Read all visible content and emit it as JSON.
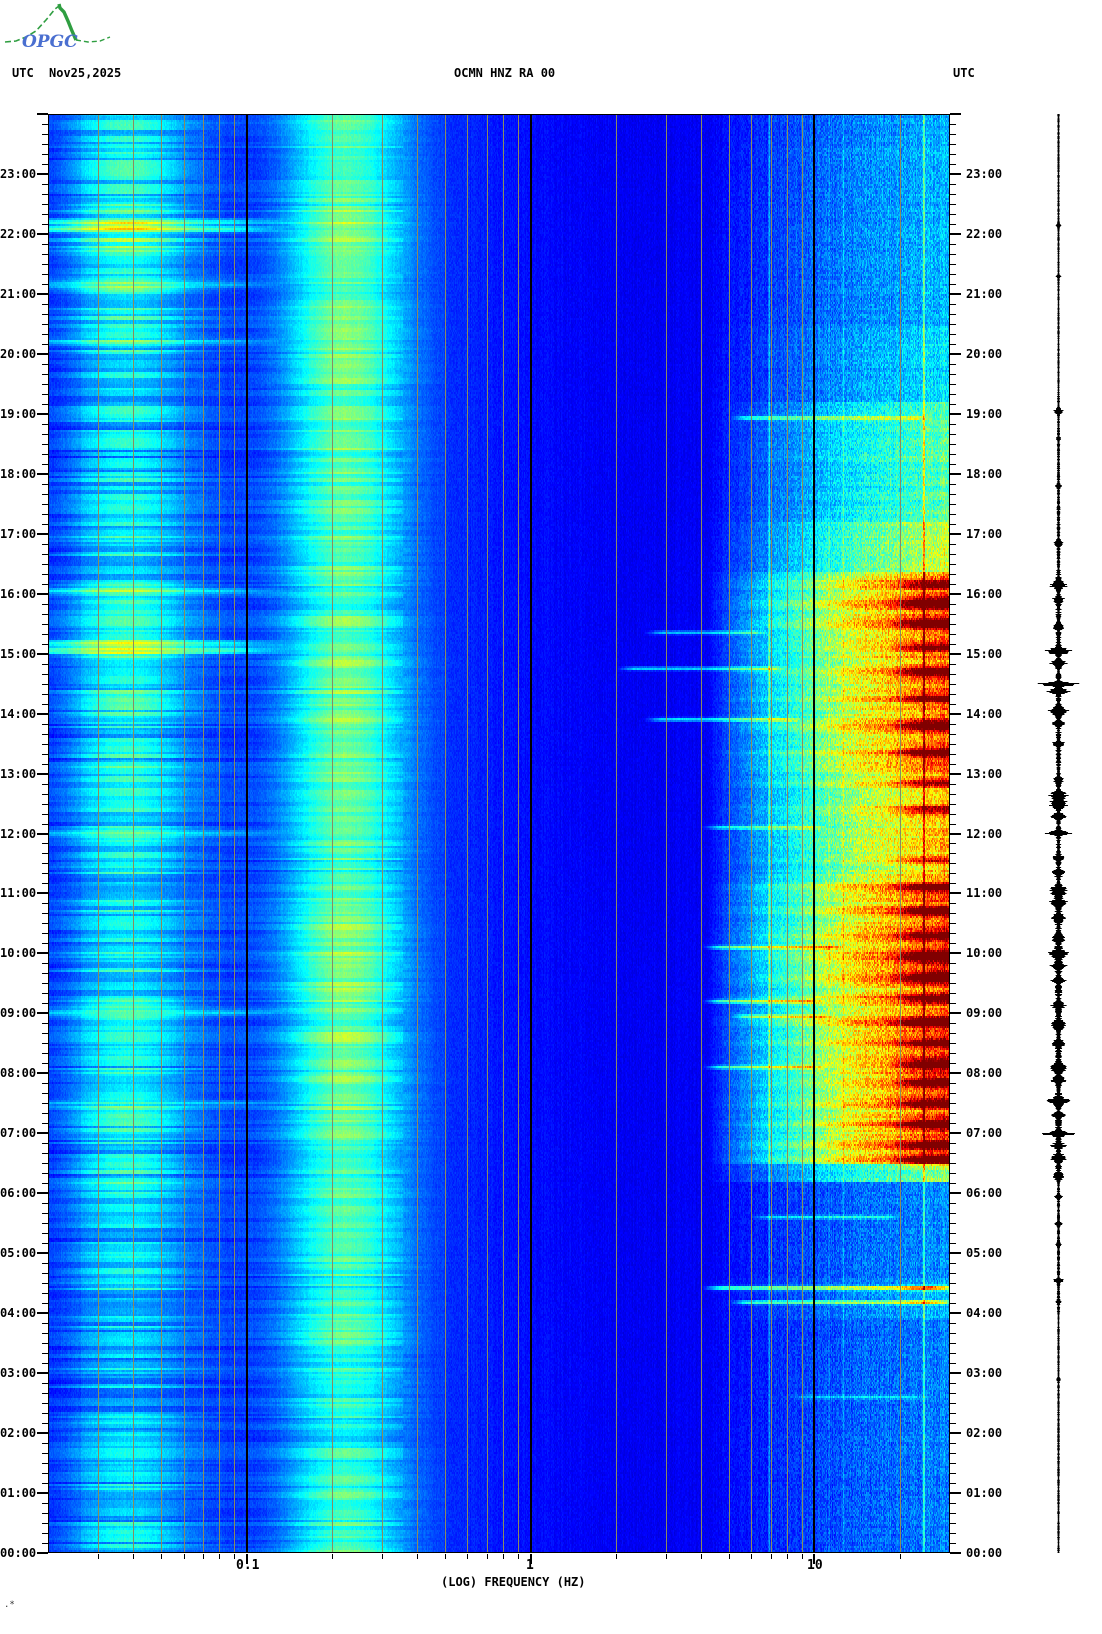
{
  "logo": {
    "text": "OPGC",
    "green": "#2f9e41",
    "blue": "#4a6fd0"
  },
  "header": {
    "left_utc": "UTC",
    "date": "Nov25,2025",
    "station_title": "OCMN HNZ RA 00",
    "right_utc": "UTC"
  },
  "footer": {
    "mark": ".*"
  },
  "chart_data": {
    "type": "heatmap",
    "subtype": "seismic-spectrogram-24h",
    "title": "OCMN HNZ RA 00",
    "station": "OCMN",
    "channel": "HNZ",
    "network": "RA",
    "location": "00",
    "date_utc": "Nov25,2025",
    "xlabel": "(LOG) FREQUENCY (HZ)",
    "x_scale": "log10",
    "freq_range_hz": [
      0.02,
      30
    ],
    "x_major_ticks": [
      {
        "hz": 0.1,
        "label": "0.1"
      },
      {
        "hz": 1,
        "label": "1"
      },
      {
        "hz": 10,
        "label": "10"
      }
    ],
    "x_minor_gridlines_hz": [
      0.03,
      0.04,
      0.05,
      0.06,
      0.07,
      0.08,
      0.09,
      0.2,
      0.3,
      0.4,
      0.5,
      0.6,
      0.7,
      0.8,
      0.9,
      2,
      3,
      4,
      5,
      6,
      7,
      8,
      9,
      20
    ],
    "time_axis": {
      "bottom": "00:00",
      "top": "24:00",
      "minor_tick_minutes": 10,
      "hour_labels": [
        "23:00",
        "22:00",
        "21:00",
        "20:00",
        "19:00",
        "18:00",
        "17:00",
        "16:00",
        "15:00",
        "14:00",
        "13:00",
        "12:00",
        "11:00",
        "10:00",
        "09:00",
        "08:00",
        "07:00",
        "06:00",
        "05:00",
        "04:00",
        "03:00",
        "02:00",
        "01:00",
        "00:00"
      ]
    },
    "colors": {
      "grid": "#8b8b5f",
      "axis": "#000000",
      "background": "#ffffff",
      "colormap": "jet",
      "trace": "#000000"
    },
    "base_spectrum": [
      [
        -1.7,
        0.155
      ],
      [
        -1.58,
        0.175
      ],
      [
        -1.42,
        0.18
      ],
      [
        -1.28,
        0.175
      ],
      [
        -1.1,
        0.165
      ],
      [
        -1.0,
        0.155
      ],
      [
        -0.92,
        0.15
      ],
      [
        -0.8,
        0.16
      ],
      [
        -0.66,
        0.165
      ],
      [
        -0.5,
        0.165
      ],
      [
        -0.35,
        0.16
      ],
      [
        -0.2,
        0.15
      ],
      [
        -0.05,
        0.14
      ],
      [
        0.1,
        0.125
      ],
      [
        0.3,
        0.115
      ],
      [
        0.6,
        0.112
      ],
      [
        0.8,
        0.12
      ],
      [
        1.0,
        0.128
      ],
      [
        1.3,
        0.13
      ],
      [
        1.48,
        0.13
      ]
    ],
    "band2_envelope": [
      [
        0,
        2,
        0.16
      ],
      [
        2,
        4,
        0.13
      ],
      [
        4,
        6,
        0.16
      ],
      [
        6,
        8,
        0.21
      ],
      [
        8,
        10,
        0.2
      ],
      [
        10,
        12,
        0.18
      ],
      [
        12,
        14,
        0.21
      ],
      [
        14,
        16,
        0.23
      ],
      [
        16,
        17.5,
        0.19
      ],
      [
        17.5,
        19,
        0.16
      ],
      [
        19,
        20.5,
        0.19
      ],
      [
        20.5,
        21.5,
        0.22
      ],
      [
        21.5,
        22.5,
        0.27
      ],
      [
        22.5,
        23.5,
        0.21
      ],
      [
        23.5,
        24,
        0.18
      ]
    ],
    "microseism_envelope": [
      [
        0,
        1.5,
        0.27
      ],
      [
        1.5,
        3.5,
        0.23
      ],
      [
        3.5,
        5,
        0.27
      ],
      [
        5,
        7,
        0.29
      ],
      [
        7,
        9,
        0.32
      ],
      [
        9,
        10.5,
        0.33
      ],
      [
        10.5,
        12,
        0.29
      ],
      [
        12,
        13,
        0.31
      ],
      [
        13,
        15,
        0.33
      ],
      [
        15,
        16.5,
        0.29
      ],
      [
        16.5,
        18,
        0.28
      ],
      [
        18,
        19.5,
        0.31
      ],
      [
        19.5,
        21,
        0.33
      ],
      [
        21,
        21.8,
        0.3
      ],
      [
        21.8,
        22.4,
        0.36
      ],
      [
        22.4,
        23.2,
        0.31
      ],
      [
        23.2,
        24,
        0.29
      ]
    ],
    "hf_envelope": [
      [
        0,
        3.9,
        0.09
      ],
      [
        3.9,
        4.6,
        0.13
      ],
      [
        4.6,
        6.2,
        0.1
      ],
      [
        6.2,
        6.5,
        0.28
      ],
      [
        6.5,
        11.2,
        0.5
      ],
      [
        11.2,
        13.0,
        0.42
      ],
      [
        13.0,
        16.35,
        0.48
      ],
      [
        16.35,
        17.2,
        0.32
      ],
      [
        17.2,
        19.2,
        0.25
      ],
      [
        19.2,
        20.5,
        0.16
      ],
      [
        20.5,
        24,
        0.13
      ]
    ],
    "spectral_lines_hz": [
      {
        "hz": 6.9,
        "s": 0.22
      },
      {
        "hz": 11.2,
        "s": 0.1
      },
      {
        "hz": 12.6,
        "s": 0.08
      },
      {
        "hz": 24.2,
        "s": 0.38
      },
      {
        "hz": 28.5,
        "s": 0.1
      }
    ],
    "red_bursts": [
      [
        6.55,
        0.06,
        1
      ],
      [
        6.8,
        0.05,
        0.9
      ],
      [
        7.15,
        0.06,
        1
      ],
      [
        7.5,
        0.05,
        0.9
      ],
      [
        7.85,
        0.06,
        1
      ],
      [
        8.15,
        0.07,
        1
      ],
      [
        8.5,
        0.05,
        0.8
      ],
      [
        8.85,
        0.06,
        1
      ],
      [
        9.25,
        0.05,
        0.9
      ],
      [
        9.6,
        0.06,
        1
      ],
      [
        9.95,
        0.07,
        1
      ],
      [
        10.3,
        0.05,
        0.8
      ],
      [
        10.7,
        0.06,
        0.9
      ],
      [
        11.1,
        0.05,
        0.8
      ],
      [
        11.55,
        0.04,
        0.6
      ],
      [
        12.4,
        0.05,
        0.8
      ],
      [
        12.85,
        0.05,
        0.7
      ],
      [
        13.35,
        0.06,
        0.9
      ],
      [
        13.8,
        0.06,
        0.9
      ],
      [
        14.25,
        0.05,
        0.8
      ],
      [
        14.7,
        0.06,
        1
      ],
      [
        15.1,
        0.05,
        0.9
      ],
      [
        15.5,
        0.06,
        1
      ],
      [
        15.85,
        0.07,
        1
      ],
      [
        16.15,
        0.05,
        0.8
      ],
      [
        4.42,
        0.03,
        0.6
      ],
      [
        4.18,
        0.025,
        0.4
      ]
    ],
    "events": [
      [
        18.93,
        5,
        26,
        0.25
      ],
      [
        14.75,
        2,
        8,
        0.22
      ],
      [
        13.9,
        2.5,
        9,
        0.25
      ],
      [
        12.1,
        4,
        11,
        0.22
      ],
      [
        10.1,
        4,
        13,
        0.28
      ],
      [
        9.2,
        4,
        11,
        0.28
      ],
      [
        8.95,
        5,
        12,
        0.24
      ],
      [
        8.1,
        4,
        11,
        0.24
      ],
      [
        15.35,
        2.5,
        7,
        0.2
      ],
      [
        4.42,
        4,
        30,
        0.34
      ],
      [
        4.18,
        5,
        30,
        0.27
      ],
      [
        5.6,
        6,
        20,
        0.18
      ],
      [
        2.6,
        8,
        25,
        0.12
      ]
    ],
    "low_freq_bright_rows": [
      [
        15.05,
        0.26
      ],
      [
        15.17,
        0.18
      ],
      [
        22.08,
        0.24
      ],
      [
        22.2,
        0.16
      ],
      [
        21.15,
        0.13
      ],
      [
        20.2,
        0.11
      ],
      [
        16.05,
        0.13
      ],
      [
        12.0,
        0.11
      ],
      [
        9.0,
        0.13
      ],
      [
        7.5,
        0.11
      ]
    ],
    "trace": {
      "noise_segments": [
        [
          0,
          4.0,
          0.7
        ],
        [
          4.0,
          6.2,
          1.0
        ],
        [
          6.2,
          8.6,
          2.6
        ],
        [
          8.6,
          11.4,
          2.8
        ],
        [
          11.4,
          13.2,
          2.0
        ],
        [
          13.2,
          16.4,
          2.2
        ],
        [
          16.4,
          17.5,
          1.3
        ],
        [
          17.5,
          19.3,
          1.0
        ],
        [
          19.3,
          24,
          0.6
        ]
      ],
      "spikes": [
        [
          22.15,
          3,
          0.02
        ],
        [
          21.3,
          2,
          0.02
        ],
        [
          19.05,
          4,
          0.03
        ],
        [
          18.6,
          2,
          0.02
        ],
        [
          17.8,
          3,
          0.02
        ],
        [
          16.85,
          4,
          0.03
        ],
        [
          16.15,
          8,
          0.04
        ],
        [
          15.9,
          6,
          0.03
        ],
        [
          15.45,
          4,
          0.03
        ],
        [
          15.05,
          12,
          0.035
        ],
        [
          14.85,
          8,
          0.03
        ],
        [
          14.5,
          26,
          0.022
        ],
        [
          14.38,
          10,
          0.03
        ],
        [
          14.05,
          9,
          0.04
        ],
        [
          13.85,
          6,
          0.03
        ],
        [
          13.5,
          5,
          0.03
        ],
        [
          12.9,
          5,
          0.03
        ],
        [
          12.65,
          8,
          0.04
        ],
        [
          12.5,
          9,
          0.05
        ],
        [
          12.3,
          7,
          0.03
        ],
        [
          12.02,
          14,
          0.025
        ],
        [
          11.6,
          6,
          0.03
        ],
        [
          11.35,
          5,
          0.03
        ],
        [
          11.05,
          8,
          0.05
        ],
        [
          10.85,
          7,
          0.04
        ],
        [
          10.6,
          6,
          0.04
        ],
        [
          10.25,
          5,
          0.04
        ],
        [
          10.0,
          8,
          0.05
        ],
        [
          9.8,
          6,
          0.04
        ],
        [
          9.55,
          5,
          0.03
        ],
        [
          9.15,
          6,
          0.04
        ],
        [
          8.8,
          6,
          0.05
        ],
        [
          8.5,
          5,
          0.04
        ],
        [
          8.1,
          8,
          0.05
        ],
        [
          7.9,
          6,
          0.04
        ],
        [
          7.55,
          9,
          0.04
        ],
        [
          7.3,
          5,
          0.03
        ],
        [
          7.0,
          15,
          0.025
        ],
        [
          6.8,
          6,
          0.03
        ],
        [
          6.6,
          7,
          0.04
        ],
        [
          6.3,
          4,
          0.03
        ],
        [
          5.95,
          3,
          0.02
        ],
        [
          5.5,
          4,
          0.02
        ],
        [
          5.15,
          2,
          0.02
        ],
        [
          4.55,
          5,
          0.025
        ],
        [
          4.2,
          3,
          0.02
        ],
        [
          2.9,
          1.5,
          0.02
        ]
      ]
    }
  }
}
